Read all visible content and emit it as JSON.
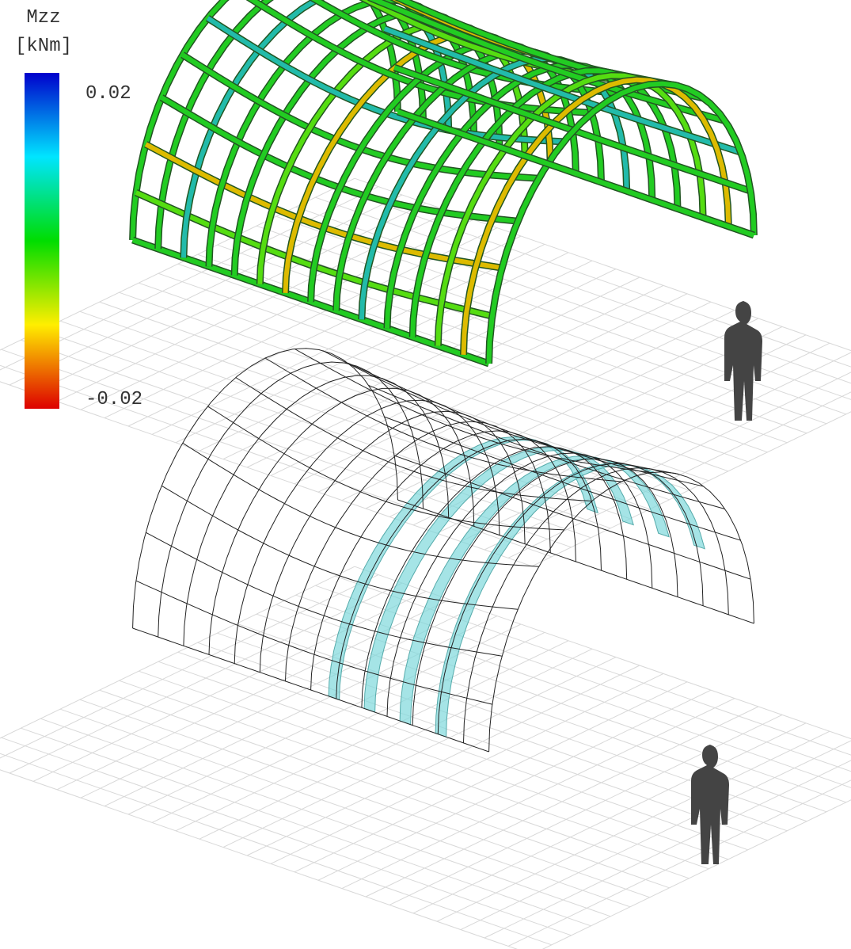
{
  "colorbar": {
    "title": "Mzz",
    "unit": "[kNm]",
    "max": 0.02,
    "min": -0.02
  }
}
